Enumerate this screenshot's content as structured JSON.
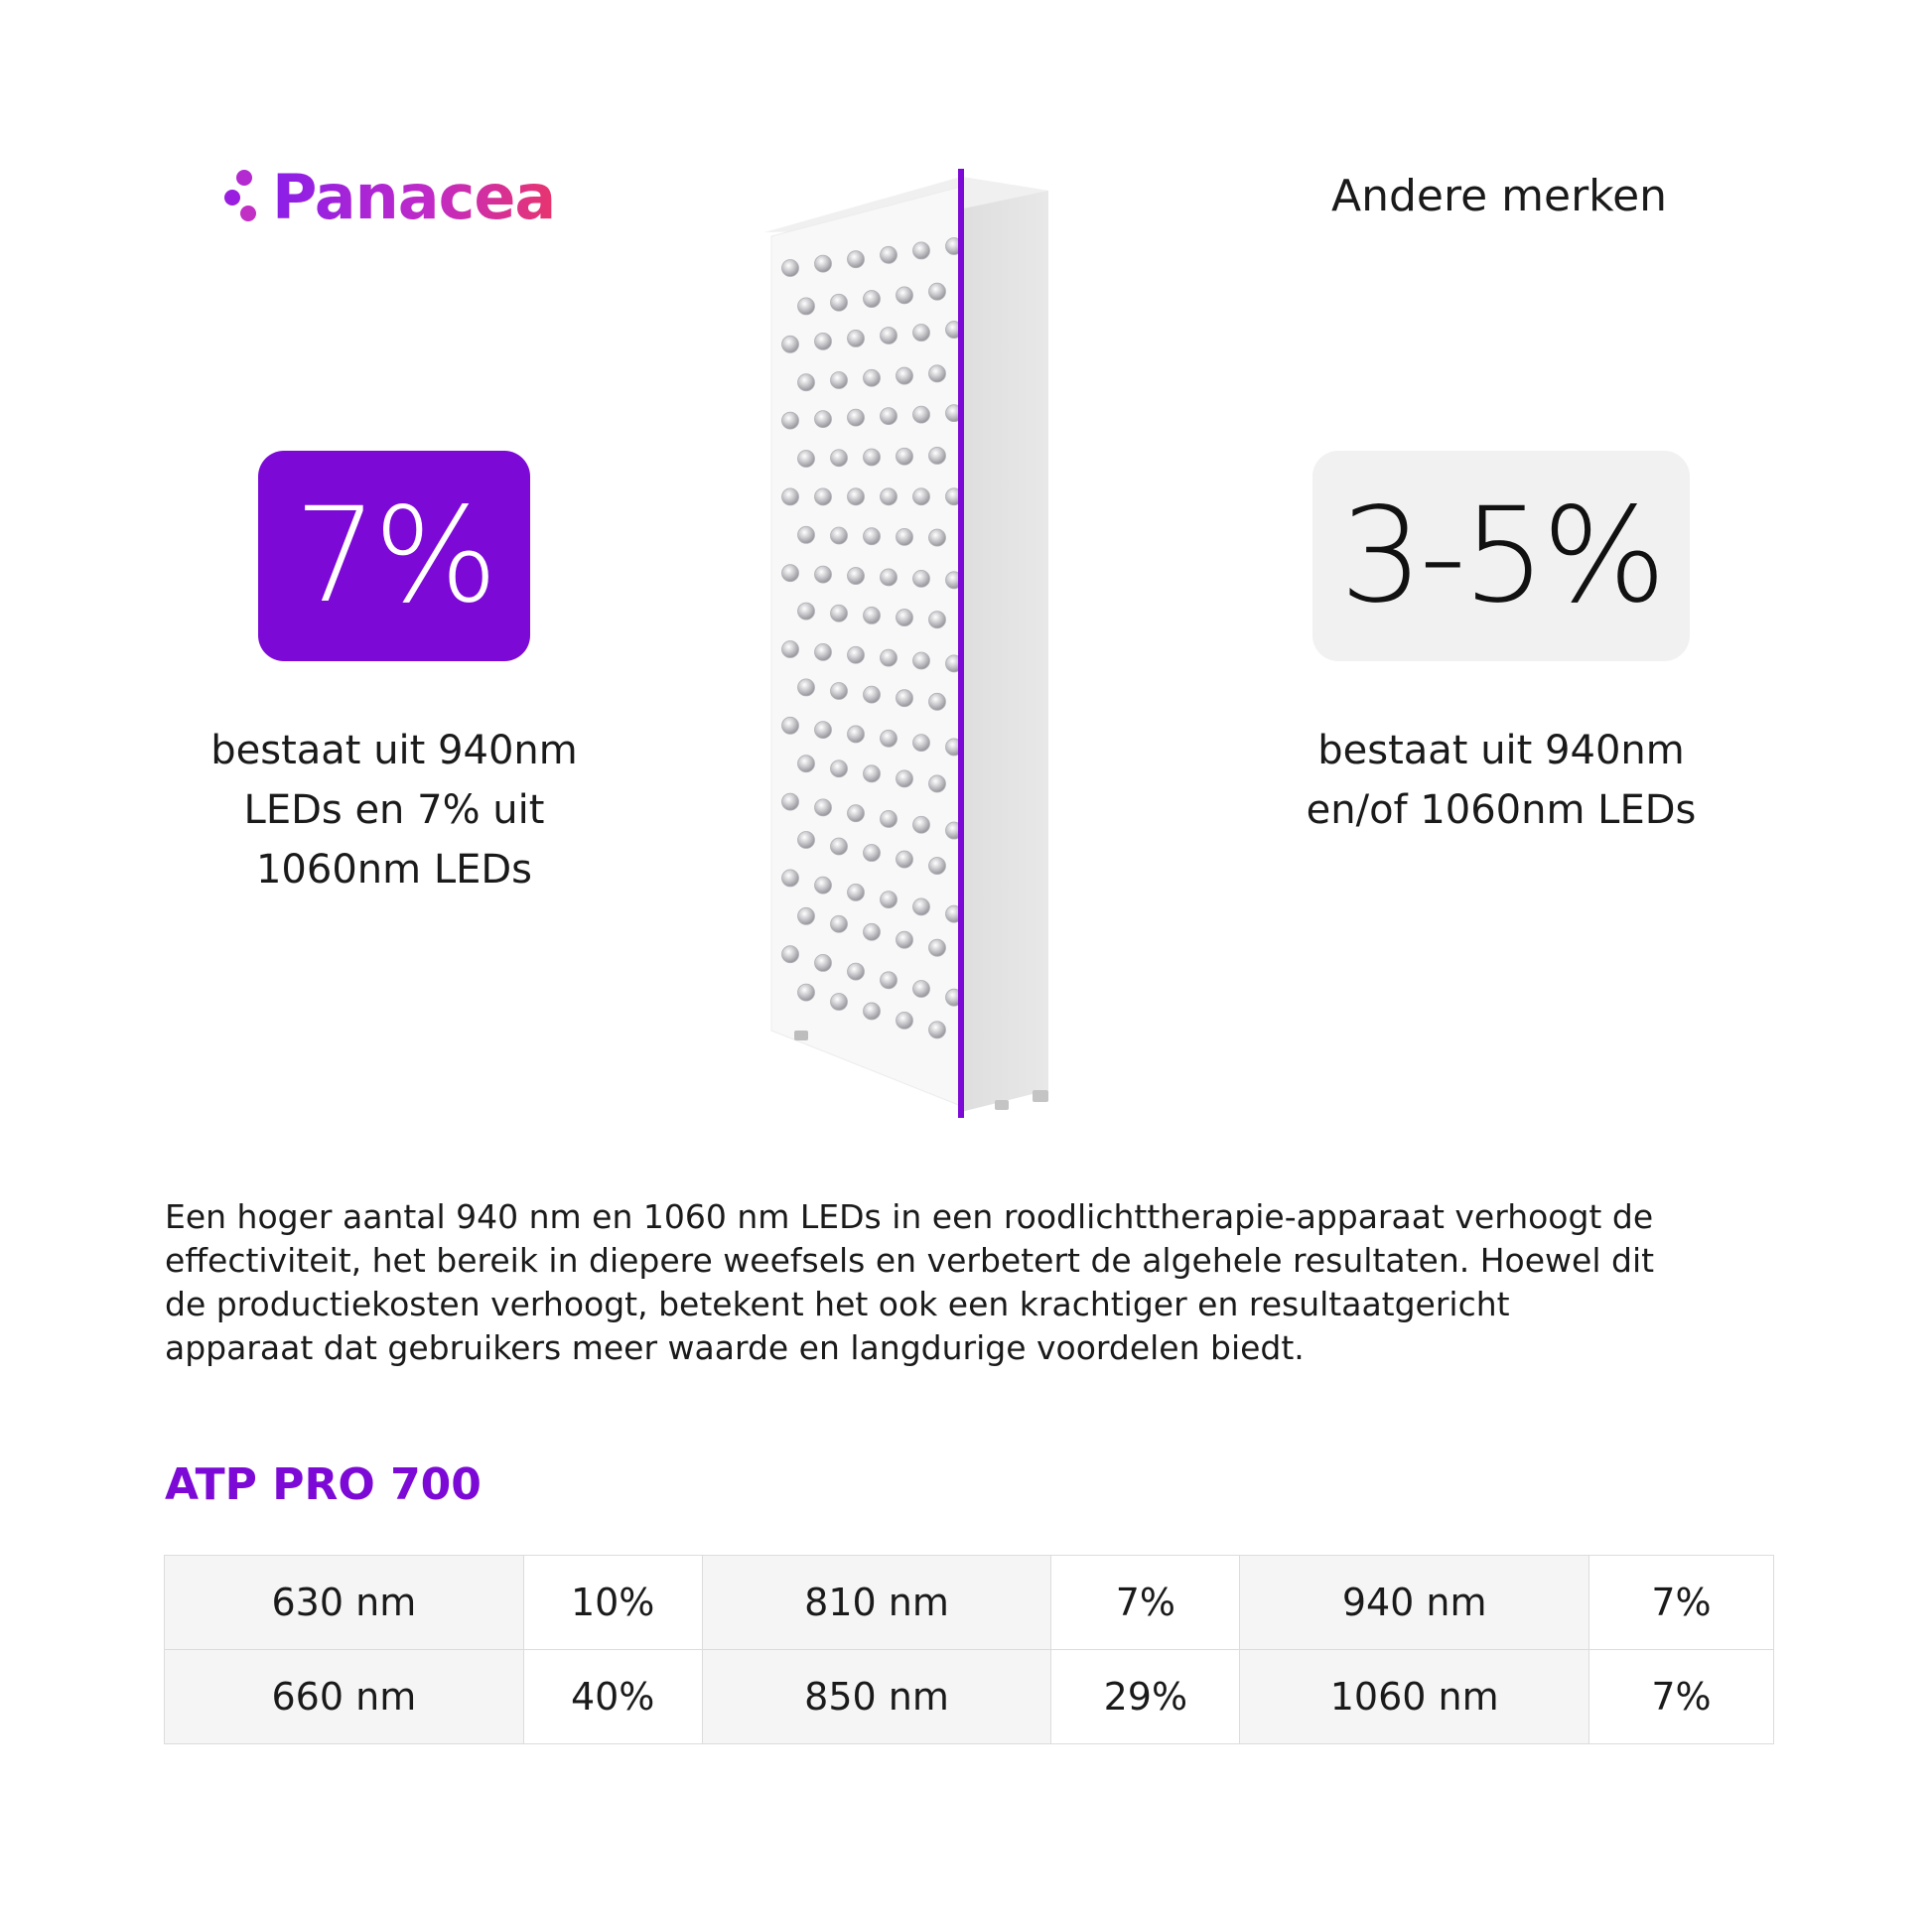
{
  "logo": {
    "text": "Panacea",
    "brand_colors": [
      "#8a1ee8",
      "#c02ac8",
      "#e8356e"
    ]
  },
  "other_brands_label": "Andere merken",
  "panacea": {
    "percent": "7%",
    "description_lines": [
      "bestaat uit 940nm",
      "LEDs en 7% uit",
      "1060nm LEDs"
    ],
    "box_color": "#7c09d6"
  },
  "others": {
    "percent": "3-5%",
    "description_lines": [
      "bestaat uit 940nm",
      "en/of 1060nm LEDs"
    ],
    "box_color": "#f1f1f1"
  },
  "paragraph_lines": [
    "Een hoger aantal 940 nm en 1060 nm LEDs in een roodlichttherapie-apparaat verhoogt de",
    "effectiviteit, het bereik in diepere weefsels en verbetert de algehele resultaten. Hoewel dit",
    "de productiekosten verhoogt, betekent het ook een krachtiger en resultaatgericht",
    "apparaat dat gebruikers meer waarde en langdurige voordelen biedt."
  ],
  "model_title": "ATP PRO 700",
  "spec_table": {
    "rows": [
      [
        {
          "wavelength": "630 nm",
          "percent": "10%"
        },
        {
          "wavelength": "810 nm",
          "percent": "7%"
        },
        {
          "wavelength": "940 nm",
          "percent": "7%"
        }
      ],
      [
        {
          "wavelength": "660 nm",
          "percent": "40%"
        },
        {
          "wavelength": "850 nm",
          "percent": "29%"
        },
        {
          "wavelength": "1060 nm",
          "percent": "7%"
        }
      ]
    ]
  },
  "accent_color": "#7c09d6"
}
